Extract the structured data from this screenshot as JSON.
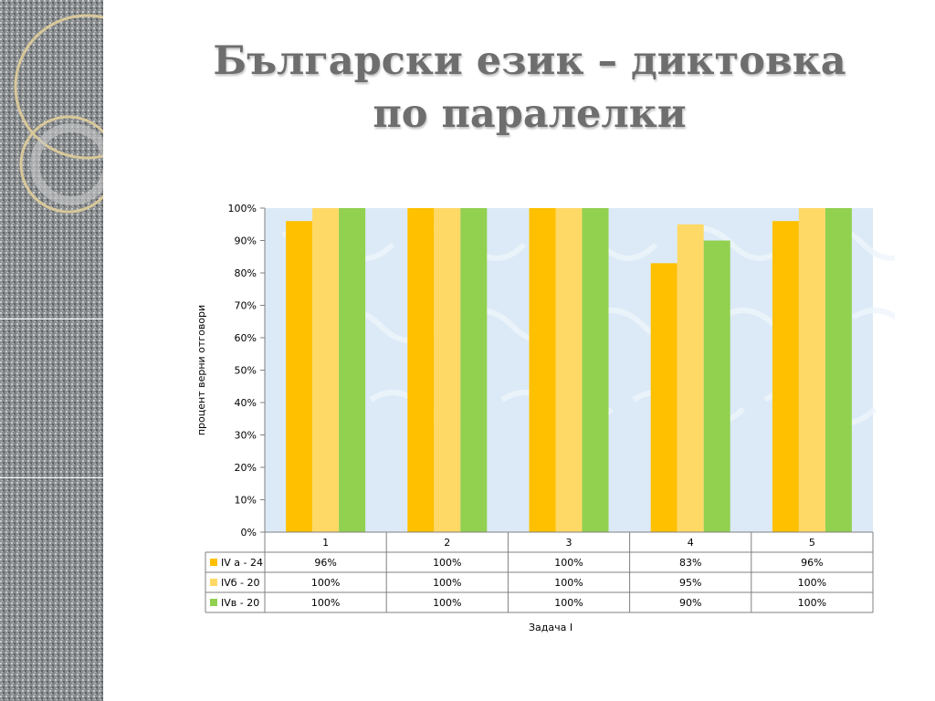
{
  "title_line1": "Български език – диктовка",
  "title_line2": "по паралелки",
  "colors": {
    "accent": "#ffc000",
    "series": [
      "#ffc000",
      "#ffd966",
      "#92d050"
    ],
    "plot_bg": "#dbeaf6",
    "title": "#6e6e6e"
  },
  "chart_data": {
    "type": "bar",
    "categories": [
      "1",
      "2",
      "3",
      "4",
      "5"
    ],
    "series": [
      {
        "name": "IV а - 24",
        "values": [
          96,
          100,
          100,
          83,
          96
        ],
        "labels": [
          "96%",
          "100%",
          "100%",
          "83%",
          "96%"
        ]
      },
      {
        "name": "IVб - 20",
        "values": [
          100,
          100,
          100,
          95,
          100
        ],
        "labels": [
          "100%",
          "100%",
          "100%",
          "95%",
          "100%"
        ]
      },
      {
        "name": "IVв - 20",
        "values": [
          100,
          100,
          100,
          90,
          100
        ],
        "labels": [
          "100%",
          "100%",
          "100%",
          "90%",
          "100%"
        ]
      }
    ],
    "ylabel": "процент верни отговори",
    "xlabel": "Задача I",
    "ylim": [
      0,
      100
    ],
    "yticks": [
      "0%",
      "10%",
      "20%",
      "30%",
      "40%",
      "50%",
      "60%",
      "70%",
      "80%",
      "90%",
      "100%"
    ],
    "grid": false,
    "legend": "data-table"
  }
}
